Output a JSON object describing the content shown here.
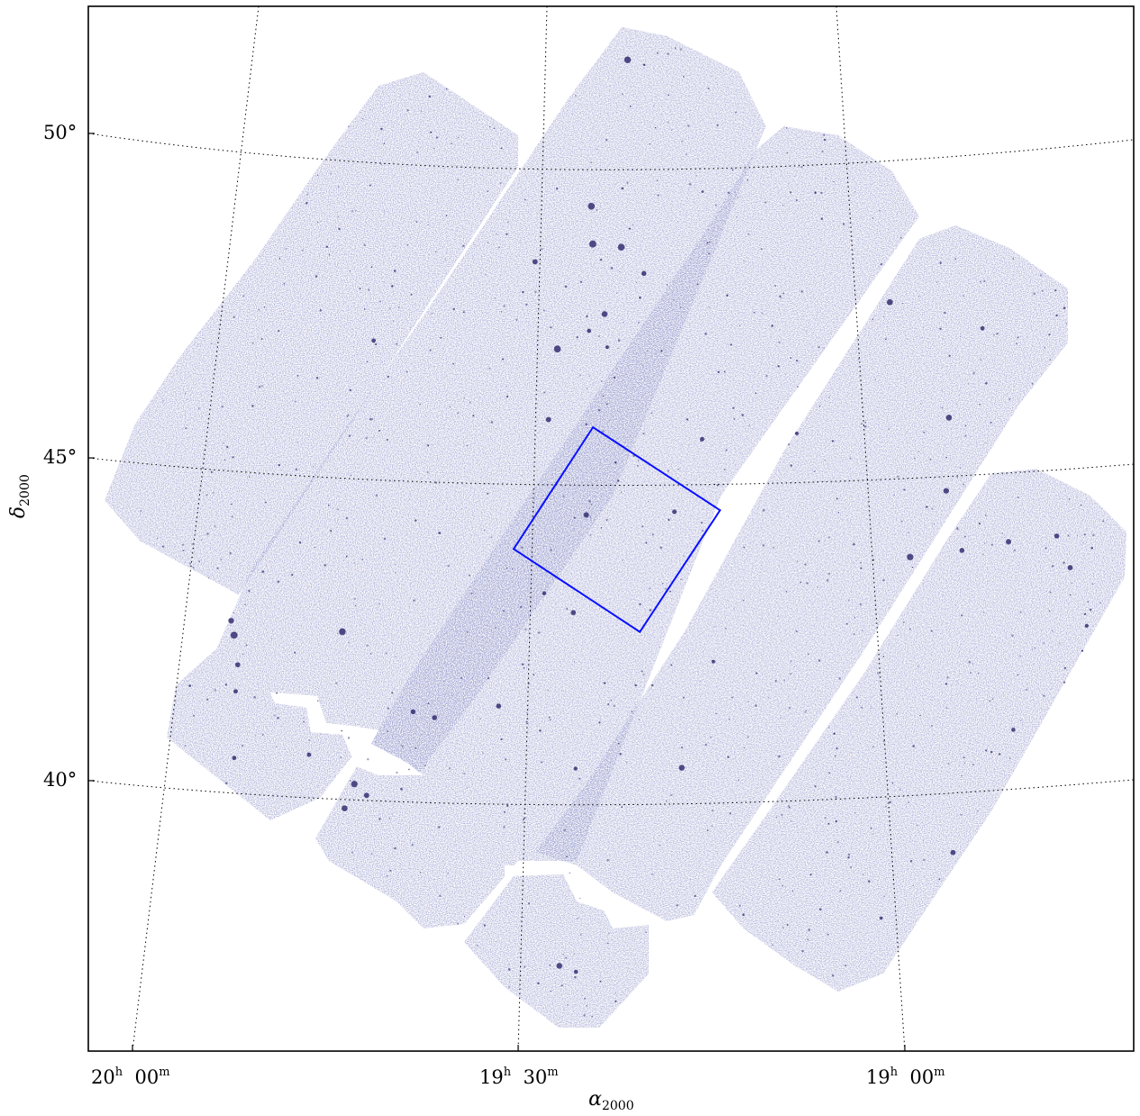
{
  "figure": {
    "xlabel": {
      "symbol": "α",
      "subscript": "2000"
    },
    "ylabel": {
      "symbol": "δ",
      "subscript": "2000"
    },
    "x_ticks": [
      {
        "h": "20",
        "m": "00"
      },
      {
        "h": "19",
        "m": "30"
      },
      {
        "h": "19",
        "m": "00"
      }
    ],
    "y_ticks": [
      "50°",
      "45°",
      "40°"
    ],
    "grid": "dotted",
    "colors": {
      "survey_fill": "#a9afd8",
      "star": "#1c1660",
      "highlight_box": "#0a10ff",
      "frame": "#000000"
    }
  },
  "survey": {
    "stripe_count": 6,
    "highlight_box": "blue rectangle"
  }
}
